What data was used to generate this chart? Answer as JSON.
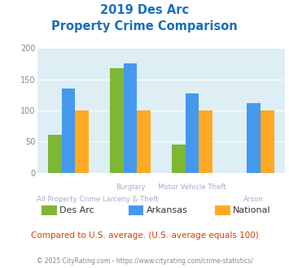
{
  "title_line1": "2019 Des Arc",
  "title_line2": "Property Crime Comparison",
  "title_color": "#1a6fbd",
  "cat_labels_top": [
    "",
    "Burglary",
    "Motor Vehicle Theft",
    ""
  ],
  "cat_labels_bottom": [
    "All Property Crime",
    "Larceny & Theft",
    "",
    "Arson"
  ],
  "series": {
    "Des Arc": [
      61,
      168,
      46,
      null
    ],
    "Arkansas": [
      135,
      176,
      128,
      112
    ],
    "National": [
      100,
      100,
      100,
      100
    ]
  },
  "colors": {
    "Des Arc": "#7db734",
    "Arkansas": "#4499ee",
    "National": "#ffaa22"
  },
  "ylim": [
    0,
    200
  ],
  "yticks": [
    0,
    50,
    100,
    150,
    200
  ],
  "background_color": "#ddeef5",
  "grid_color": "#ffffff",
  "note": "Compared to U.S. average. (U.S. average equals 100)",
  "note_color": "#cc4400",
  "footer": "© 2025 CityRating.com - https://www.cityrating.com/crime-statistics/",
  "footer_color": "#888888",
  "label_color": "#aaaacc"
}
